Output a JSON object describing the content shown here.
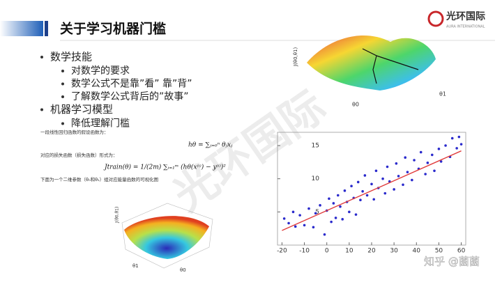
{
  "header": {
    "title": "关于学习机器门槛"
  },
  "logo": {
    "name": "光环国际",
    "subtitle": "AURA INTERNATIONAL"
  },
  "bullets": [
    {
      "text": "数学技能",
      "children": [
        "对数学的要求",
        "数学公式不是靠”看” 靠”背”",
        "了解数学公式背后的”故事”"
      ]
    },
    {
      "text": "机器学习模型",
      "children": [
        "降低理解门槛"
      ]
    }
  ],
  "notes": [
    {
      "caption": "一段线性回归函数的假设函数为：",
      "formula": "hθ = ∑ⱼ₌₀ⁿ θⱼxⱼ"
    },
    {
      "caption": "对应的损失函数（损失函数）形式为：",
      "formula": "Jtrain(θ) = 1/(2m) ∑ᵢ₌₁ᵐ (hθ(x⁽ⁱ⁾) − y⁽ⁱ⁾)²"
    },
    {
      "caption": "下面为一个二维参数（θ₀和θ₁）组对应能量函数的可视化图",
      "formula": null
    }
  ],
  "surface_top": {
    "z_label": "J(θ0,θ1)",
    "x_label": "θ0",
    "y_label": "θ1"
  },
  "surface_bowl": {
    "z_label": "J(θ0,θ1)",
    "x_label": "θ1",
    "y_label": "θ0"
  },
  "watermark": "光环国际",
  "credit": "知乎 @菌菌",
  "chart_data": {
    "type": "scatter",
    "x": [
      -19,
      -17,
      -15,
      -14,
      -12,
      -10,
      -8,
      -6,
      -5,
      -3,
      -1,
      0,
      1,
      2,
      3,
      4,
      5,
      6,
      7,
      8,
      9,
      10,
      11,
      12,
      13,
      14,
      15,
      16,
      17,
      18,
      20,
      21,
      22,
      23,
      25,
      26,
      27,
      28,
      30,
      31,
      32,
      34,
      35,
      36,
      38,
      39,
      41,
      42,
      44,
      45,
      47,
      48,
      50,
      51,
      53,
      55,
      56,
      58,
      59,
      60
    ],
    "values": [
      4.0,
      3.3,
      5.0,
      2.8,
      4.5,
      3.0,
      5.5,
      2.7,
      4.8,
      6.0,
      1.6,
      5.2,
      7.0,
      3.5,
      6.3,
      4.1,
      7.5,
      5.8,
      3.9,
      8.2,
      6.5,
      5.0,
      8.9,
      7.1,
      4.6,
      9.5,
      6.8,
      8.1,
      10.5,
      7.5,
      9.2,
      6.9,
      11.2,
      8.6,
      10.0,
      7.8,
      11.8,
      9.6,
      8.4,
      12.3,
      10.4,
      9.1,
      13.2,
      11.0,
      9.8,
      12.8,
      11.5,
      14.0,
      10.7,
      12.4,
      13.6,
      11.2,
      14.5,
      12.6,
      15.0,
      13.3,
      16.1,
      14.6,
      16.3,
      15.2
    ],
    "color": "#2a2acc",
    "fit": {
      "x": [
        -20,
        60
      ],
      "values": [
        2.2,
        14.2
      ],
      "color": "#e03c3c"
    },
    "xlim": [
      -22,
      62
    ],
    "ylim": [
      0,
      17
    ],
    "xticks": [
      -20,
      -10,
      0,
      10,
      20,
      30,
      40,
      50,
      60
    ],
    "yticks": [
      5,
      10,
      15
    ]
  }
}
